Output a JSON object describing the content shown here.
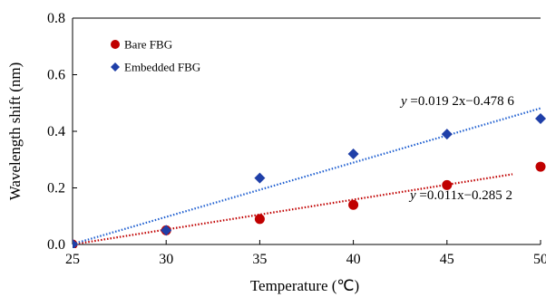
{
  "chart_data": {
    "type": "scatter",
    "xlabel": "Temperature (℃)",
    "ylabel": "Wavelength shift (nm)",
    "xlim": [
      25,
      50
    ],
    "ylim": [
      0.0,
      0.8
    ],
    "x_ticks": [
      "25",
      "30",
      "35",
      "40",
      "45",
      "50"
    ],
    "y_ticks": [
      "0.0",
      "0.2",
      "0.4",
      "0.6",
      "0.8"
    ],
    "grid": false,
    "legend_position": "top-left",
    "series": [
      {
        "name": "Bare FBG",
        "marker": "circle",
        "color": "#c00000",
        "x": [
          25,
          30,
          35,
          40,
          45,
          50
        ],
        "y": [
          0.0,
          0.05,
          0.09,
          0.14,
          0.21,
          0.275
        ],
        "fit": {
          "equation_prefix": "y",
          "equation_rest": " =0.011x−0.285 2",
          "slope": 0.011,
          "intercept": -0.2852,
          "line_color": "#c00000"
        }
      },
      {
        "name": "Embedded FBG",
        "marker": "diamond",
        "color": "#1f3fa8",
        "x": [
          25,
          30,
          35,
          40,
          45,
          50
        ],
        "y": [
          0.0,
          0.05,
          0.235,
          0.32,
          0.39,
          0.445
        ],
        "fit": {
          "equation_prefix": "y",
          "equation_rest": " =0.019 2x−0.478 6",
          "slope": 0.0192,
          "intercept": -0.4786,
          "line_color": "#1f5fd0"
        }
      }
    ]
  }
}
